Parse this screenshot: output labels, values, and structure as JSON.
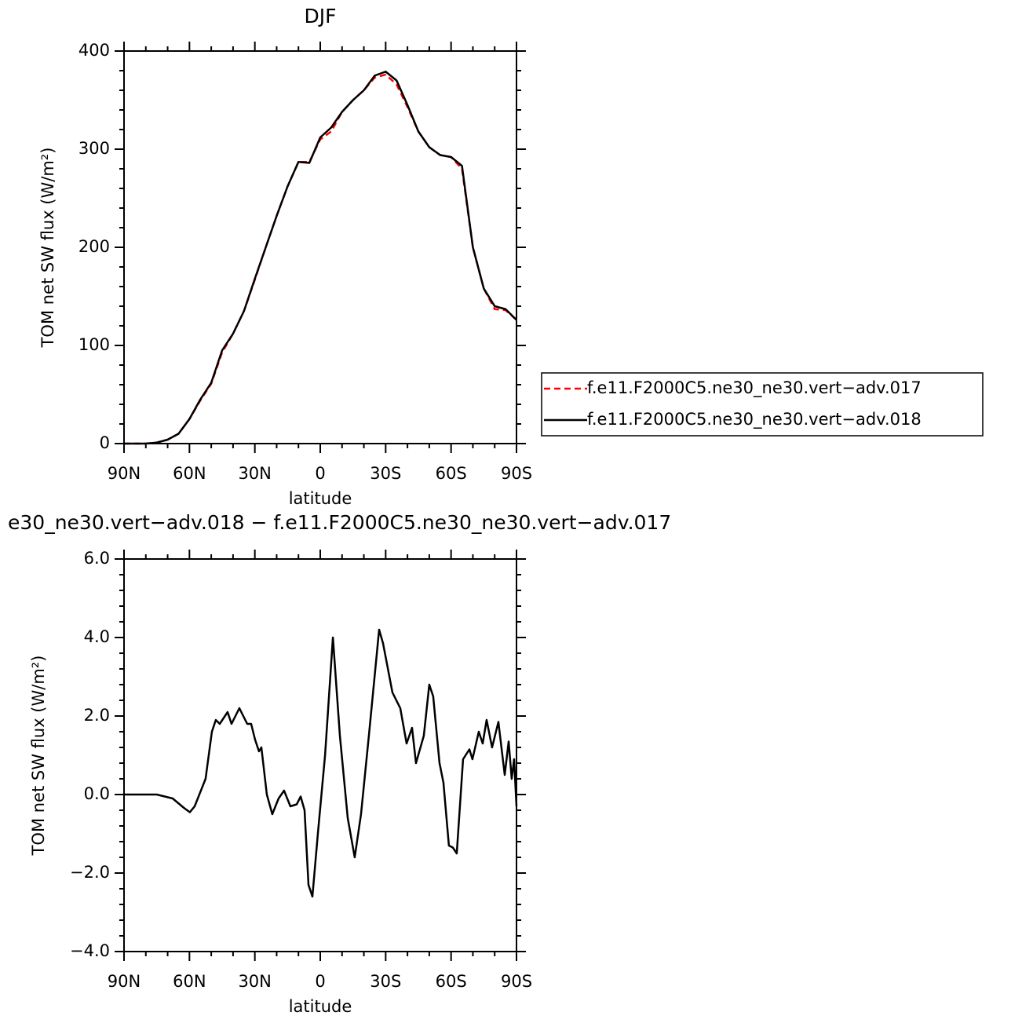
{
  "chart_data": [
    {
      "type": "line",
      "title": "DJF",
      "xlabel": "latitude",
      "ylabel": "TOM net SW flux (W/m²)",
      "x": [
        90,
        85,
        80,
        75,
        70,
        65,
        60,
        55,
        50,
        45,
        40,
        35,
        30,
        25,
        20,
        15,
        10,
        5,
        0,
        -5,
        -10,
        -15,
        -20,
        -25,
        -30,
        -35,
        -40,
        -45,
        -50,
        -55,
        -60,
        -65,
        -70,
        -75,
        -80,
        -85,
        -90
      ],
      "series": [
        {
          "name": "f.e11.F2000C5.ne30_ne30.vert−adv.017",
          "color": "#ff0000",
          "dashed": true,
          "values": [
            0,
            0,
            0,
            1,
            4,
            10,
            25,
            44,
            61,
            93,
            112,
            135,
            167,
            200,
            232,
            262,
            287,
            287,
            310,
            318,
            338,
            350,
            360,
            373,
            376,
            366,
            343,
            318,
            302,
            294,
            292,
            280,
            200,
            158,
            137,
            136,
            126
          ]
        },
        {
          "name": "f.e11.F2000C5.ne30_ne30.vert−adv.018",
          "color": "#000000",
          "dashed": false,
          "values": [
            0,
            0,
            0,
            1,
            4,
            10,
            25,
            45,
            62,
            95,
            112,
            135,
            168,
            200,
            232,
            262,
            287,
            286,
            312,
            322,
            338,
            350,
            360,
            375,
            379,
            370,
            345,
            318,
            302,
            294,
            292,
            283,
            200,
            158,
            140,
            137,
            126
          ]
        }
      ],
      "xlim": [
        90,
        -90
      ],
      "xticks": [
        {
          "value": 90,
          "label": "90N"
        },
        {
          "value": 60,
          "label": "60N"
        },
        {
          "value": 30,
          "label": "30N"
        },
        0,
        {
          "value": -30,
          "label": "30S"
        },
        {
          "value": -60,
          "label": "60S"
        },
        {
          "value": -90,
          "label": "90S"
        }
      ],
      "ylim": [
        0,
        400
      ],
      "yticks": [
        0,
        100,
        200,
        300,
        400
      ],
      "legend": "right"
    },
    {
      "type": "line",
      "title": "e30_ne30.vert−adv.018 − f.e11.F2000C5.ne30_ne30.vert−adv.017",
      "xlabel": "latitude",
      "ylabel": "TOM net SW flux (W/m²)",
      "x": [
        90,
        75,
        67.7,
        62.3,
        59.8,
        57.6,
        52.6,
        49.7,
        47.9,
        46.1,
        44.3,
        42.5,
        40.7,
        37.1,
        33.5,
        31.7,
        29.9,
        28.1,
        27,
        24.5,
        22,
        19.1,
        16.6,
        13.7,
        10.8,
        9,
        7.2,
        5.4,
        3.6,
        1.1,
        -2.2,
        -5.8,
        -9,
        -12.6,
        -15.8,
        -18.7,
        -22.3,
        -27,
        -28.8,
        -33.1,
        -36.7,
        -39.6,
        -42.1,
        -43.9,
        -47.5,
        -50,
        -51.8,
        -54.7,
        -56.5,
        -59,
        -60.8,
        -62.6,
        -65.5,
        -68.4,
        -69.8,
        -72.7,
        -74.5,
        -76.3,
        -78.8,
        -81.7,
        -84.6,
        -86.4,
        -87.8,
        -88.9,
        -90
      ],
      "series": [
        {
          "name": "difference",
          "color": "#000000",
          "dashed": false,
          "values": [
            0,
            0,
            -0.1,
            -0.35,
            -0.45,
            -0.3,
            0.4,
            1.6,
            1.9,
            1.8,
            1.95,
            2.1,
            1.8,
            2.2,
            1.8,
            1.8,
            1.4,
            1.1,
            1.2,
            0,
            -0.5,
            -0.1,
            0.1,
            -0.3,
            -0.25,
            -0.05,
            -0.4,
            -2.3,
            -2.6,
            -1.0,
            1.0,
            4.0,
            1.5,
            -0.6,
            -1.6,
            -0.5,
            1.5,
            4.2,
            3.85,
            2.6,
            2.2,
            1.3,
            1.7,
            0.8,
            1.5,
            2.8,
            2.5,
            0.8,
            0.3,
            -1.3,
            -1.35,
            -1.5,
            0.9,
            1.15,
            0.9,
            1.6,
            1.3,
            1.9,
            1.2,
            1.85,
            0.5,
            1.35,
            0.4,
            0.9,
            -0.3
          ]
        }
      ],
      "xlim": [
        90,
        -90
      ],
      "xticks": [
        {
          "value": 90,
          "label": "90N"
        },
        {
          "value": 60,
          "label": "60N"
        },
        {
          "value": 30,
          "label": "30N"
        },
        0,
        {
          "value": -30,
          "label": "30S"
        },
        {
          "value": -60,
          "label": "60S"
        },
        {
          "value": -90,
          "label": "90S"
        }
      ],
      "ylim": [
        -4,
        6
      ],
      "yticks": [
        {
          "value": -4,
          "label": "−4.0"
        },
        {
          "value": -2,
          "label": "−2.0"
        },
        {
          "value": 0,
          "label": "0.0"
        },
        {
          "value": 2,
          "label": "2.0"
        },
        {
          "value": 4,
          "label": "4.0"
        },
        {
          "value": 6,
          "label": "6.0"
        }
      ]
    }
  ]
}
